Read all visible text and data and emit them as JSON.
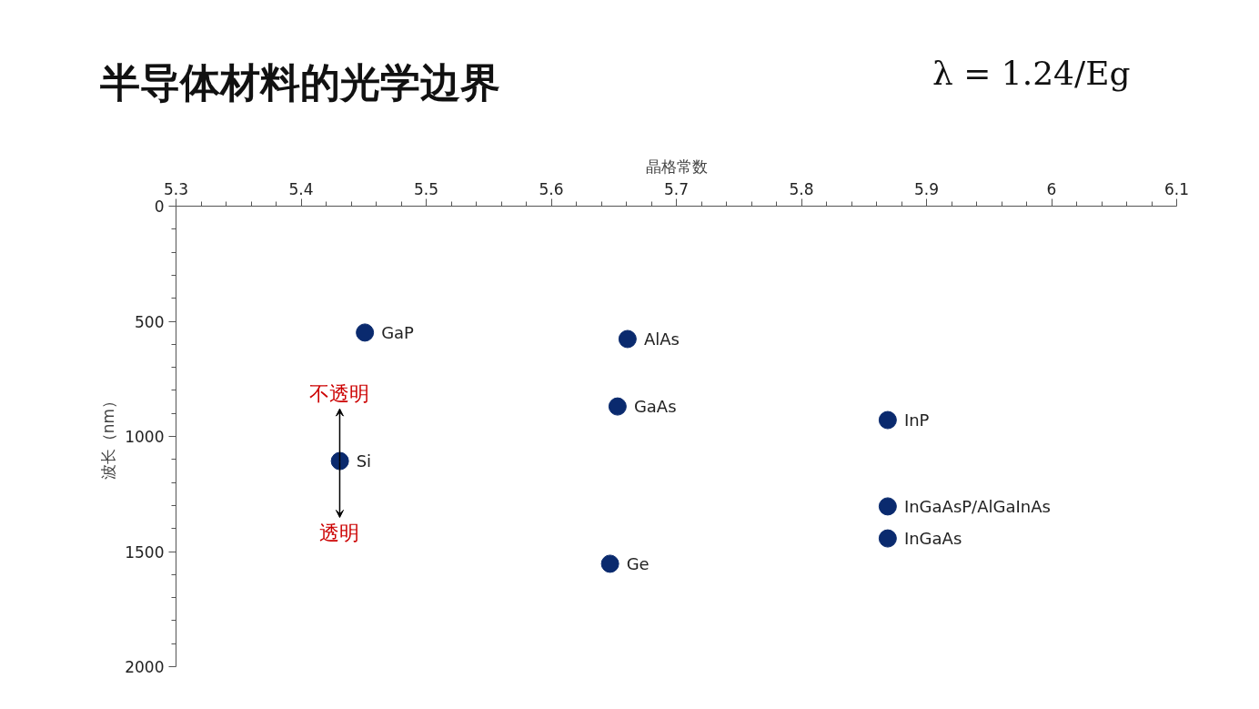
{
  "chart_data": {
    "type": "scatter",
    "title": "半导体材料的光学边界",
    "xlabel": "晶格常数",
    "ylabel": "波长（nm）",
    "x": [
      5.451,
      5.661,
      5.653,
      5.431,
      5.869,
      5.869,
      5.869,
      5.647
    ],
    "series": [
      {
        "color": "#0a2a6e",
        "values": [
          549,
          577,
          870,
          1107,
          929,
          1304,
          1443,
          1553
        ]
      }
    ],
    "xlim": [
      5.3,
      6.1
    ],
    "xticks": [
      5.3,
      5.4,
      5.5,
      5.6,
      5.7,
      5.8,
      5.9,
      {
        "value": 6.0,
        "label": "6"
      },
      6.1
    ],
    "ylim": [
      2000,
      0
    ],
    "yticks": [
      0,
      500,
      1000,
      1500,
      2000
    ],
    "marker": "circle",
    "grid": false,
    "annotations": [
      "λ = 1.24/Eg",
      {
        "text": "GaP",
        "x": 5.451,
        "y": 549
      },
      {
        "text": "AlAs",
        "x": 5.661,
        "y": 577
      },
      {
        "text": "GaAs",
        "x": 5.653,
        "y": 870
      },
      {
        "text": "Si",
        "x": 5.431,
        "y": 1107
      },
      {
        "text": "InP",
        "x": 5.869,
        "y": 929
      },
      {
        "text": "InGaAsP/AlGaInAs",
        "x": 5.869,
        "y": 1304
      },
      {
        "text": "InGaAs",
        "x": 5.869,
        "y": 1443
      },
      {
        "text": "Ge",
        "x": 5.647,
        "y": 1553
      },
      "不透明",
      "透明"
    ]
  }
}
